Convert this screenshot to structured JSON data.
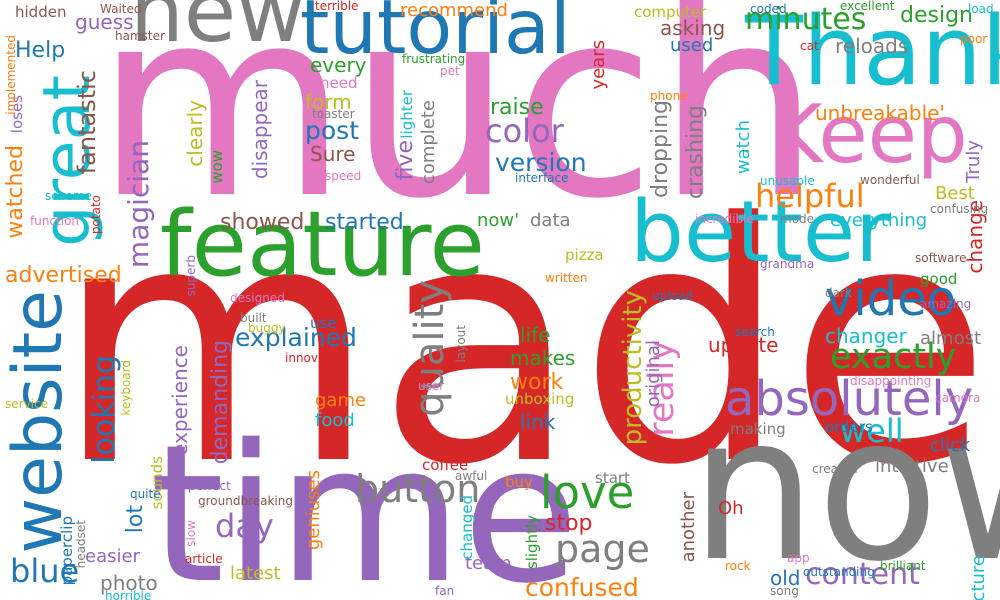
{
  "word_cloud": {
    "words": [
      {
        "text": "made",
        "color": "#d62728"
      },
      {
        "text": "much",
        "color": "#e377c2"
      },
      {
        "text": "now",
        "color": "#7f7f7f"
      },
      {
        "text": "time",
        "color": "#9467bd"
      },
      {
        "text": "feature",
        "color": "#2ca02c"
      },
      {
        "text": "new",
        "color": "#7f7f7f"
      },
      {
        "text": "Thank",
        "color": "#17becf"
      },
      {
        "text": "tutorial",
        "color": "#1f77b4"
      },
      {
        "text": "better",
        "color": "#17becf"
      },
      {
        "text": "Keep",
        "color": "#e377c2"
      },
      {
        "text": "website",
        "color": "#1f77b4"
      },
      {
        "text": "great",
        "color": "#17becf"
      },
      {
        "text": "absolutely",
        "color": "#9467bd"
      },
      {
        "text": "video",
        "color": "#1f77b4"
      },
      {
        "text": "love",
        "color": "#2ca02c"
      },
      {
        "text": "quality",
        "color": "#7f7f7f"
      },
      {
        "text": "button",
        "color": "#7f7f7f"
      },
      {
        "text": "page",
        "color": "#7f7f7f"
      },
      {
        "text": "exactly",
        "color": "#2ca02c"
      },
      {
        "text": "really",
        "color": "#e377c2"
      },
      {
        "text": "minutes",
        "color": "#2ca02c"
      },
      {
        "text": "helpful",
        "color": "#ff7f0e"
      },
      {
        "text": "blue",
        "color": "#1f77b4"
      },
      {
        "text": "well",
        "color": "#17becf"
      },
      {
        "text": "content",
        "color": "#9467bd"
      },
      {
        "text": "color",
        "color": "#9467bd"
      },
      {
        "text": "day",
        "color": "#9467bd"
      },
      {
        "text": "looking",
        "color": "#1f77b4"
      },
      {
        "text": "magician",
        "color": "#9467bd"
      },
      {
        "text": "confused",
        "color": "#ff7f0e"
      },
      {
        "text": "productivity",
        "color": "#bcbd22"
      },
      {
        "text": "explained",
        "color": "#1f77b4"
      },
      {
        "text": "design",
        "color": "#2ca02c"
      },
      {
        "text": "Help",
        "color": "#1f77b4"
      },
      {
        "text": "post",
        "color": "#1f77b4"
      },
      {
        "text": "five",
        "color": "#9467bd"
      },
      {
        "text": "version",
        "color": "#1f77b4"
      },
      {
        "text": "raise",
        "color": "#2ca02c"
      },
      {
        "text": "fantastic",
        "color": "#8c564b"
      },
      {
        "text": "watched",
        "color": "#ff7f0e"
      },
      {
        "text": "demanding",
        "color": "#9467bd"
      },
      {
        "text": "dropping",
        "color": "#7f7f7f"
      },
      {
        "text": "crashing",
        "color": "#7f7f7f"
      },
      {
        "text": "experience",
        "color": "#9467bd"
      },
      {
        "text": "advertised",
        "color": "#ff7f0e"
      },
      {
        "text": "lot",
        "color": "#1f77b4"
      },
      {
        "text": "showed",
        "color": "#8c564b"
      },
      {
        "text": "started",
        "color": "#1f77b4"
      },
      {
        "text": "work",
        "color": "#ff7f0e"
      },
      {
        "text": "stop",
        "color": "#d62728"
      },
      {
        "text": "makes",
        "color": "#2ca02c"
      },
      {
        "text": "life",
        "color": "#2ca02c"
      },
      {
        "text": "link",
        "color": "#1f77b4"
      },
      {
        "text": "update",
        "color": "#d62728"
      },
      {
        "text": "changer",
        "color": "#17becf"
      },
      {
        "text": "unbreakable'",
        "color": "#ff7f0e"
      },
      {
        "text": "everything",
        "color": "#17becf"
      },
      {
        "text": "change",
        "color": "#d62728"
      },
      {
        "text": "asking",
        "color": "#8c564b"
      },
      {
        "text": "reloads",
        "color": "#7f7f7f"
      },
      {
        "text": "disappear",
        "color": "#9467bd"
      },
      {
        "text": "clearly",
        "color": "#bcbd22"
      },
      {
        "text": "guess",
        "color": "#9467bd"
      },
      {
        "text": "every",
        "color": "#2ca02c"
      },
      {
        "text": "form",
        "color": "#bcbd22"
      },
      {
        "text": "Sure",
        "color": "#8c564b"
      },
      {
        "text": "recommend",
        "color": "#ff7f0e"
      },
      {
        "text": "used",
        "color": "#1f77b4"
      },
      {
        "text": "years",
        "color": "#d62728"
      },
      {
        "text": "Best",
        "color": "#bcbd22"
      },
      {
        "text": "watch",
        "color": "#17becf"
      },
      {
        "text": "intuitive",
        "color": "#7f7f7f"
      },
      {
        "text": "click",
        "color": "#1f77b4"
      },
      {
        "text": "almost",
        "color": "#7f7f7f"
      },
      {
        "text": "game",
        "color": "#ff7f0e"
      },
      {
        "text": "food",
        "color": "#17becf"
      },
      {
        "text": "original",
        "color": "#9467bd"
      },
      {
        "text": "another",
        "color": "#8c564b"
      },
      {
        "text": "Oh",
        "color": "#d62728"
      },
      {
        "text": "old",
        "color": "#1f77b4"
      },
      {
        "text": "latest",
        "color": "#bcbd22"
      },
      {
        "text": "easier",
        "color": "#9467bd"
      },
      {
        "text": "photo",
        "color": "#7f7f7f"
      },
      {
        "text": "team",
        "color": "#9467bd"
      },
      {
        "text": "geniuses",
        "color": "#ff7f0e"
      },
      {
        "text": "complete",
        "color": "#7f7f7f"
      },
      {
        "text": "data",
        "color": "#7f7f7f"
      },
      {
        "text": "now'",
        "color": "#2ca02c"
      },
      {
        "text": "pizza",
        "color": "#bcbd22"
      },
      {
        "text": "making",
        "color": "#7f7f7f"
      },
      {
        "text": "coffee",
        "color": "#d62728"
      },
      {
        "text": "sounds",
        "color": "#bcbd22"
      },
      {
        "text": "paperclip",
        "color": "#1f77b4"
      },
      {
        "text": "picture",
        "color": "#17becf"
      },
      {
        "text": "Truly",
        "color": "#9467bd"
      },
      {
        "text": "loses",
        "color": "#9467bd"
      },
      {
        "text": "hidden",
        "color": "#8c564b"
      },
      {
        "text": "lighter",
        "color": "#17becf"
      },
      {
        "text": "use",
        "color": "#1f77b4"
      },
      {
        "text": "need",
        "color": "#e377c2"
      },
      {
        "text": "computer",
        "color": "#bcbd22"
      },
      {
        "text": "buy",
        "color": "#ff7f0e"
      },
      {
        "text": "slightly",
        "color": "#2ca02c"
      },
      {
        "text": "unboxing",
        "color": "#bcbd22"
      },
      {
        "text": "good",
        "color": "#2ca02c"
      },
      {
        "text": "orders",
        "color": "#1f77b4"
      },
      {
        "text": "start",
        "color": "#7f7f7f"
      },
      {
        "text": "changed",
        "color": "#17becf"
      },
      {
        "text": "wow",
        "color": "#2ca02c"
      },
      {
        "text": "terrible",
        "color": "#d62728"
      },
      {
        "text": "Waited",
        "color": "#8c564b"
      },
      {
        "text": "hamster",
        "color": "#8c564b"
      },
      {
        "text": "frustrating",
        "color": "#2ca02c"
      },
      {
        "text": "toaster",
        "color": "#7f7f7f"
      },
      {
        "text": "pet",
        "color": "#e377c2"
      },
      {
        "text": "excellent",
        "color": "#2ca02c"
      },
      {
        "text": "coded",
        "color": "#1f77b4"
      },
      {
        "text": "load",
        "color": "#17becf"
      },
      {
        "text": "cat",
        "color": "#d62728"
      },
      {
        "text": "poor",
        "color": "#ff7f0e"
      },
      {
        "text": "speed",
        "color": "#e377c2"
      },
      {
        "text": "interface",
        "color": "#1f77b4"
      },
      {
        "text": "phone",
        "color": "#ff7f0e"
      },
      {
        "text": "unusable",
        "color": "#17becf"
      },
      {
        "text": "wonderful",
        "color": "#8c564b"
      },
      {
        "text": "confusing",
        "color": "#7f7f7f"
      },
      {
        "text": "incredible",
        "color": "#e377c2"
      },
      {
        "text": "mode",
        "color": "#7f7f7f"
      },
      {
        "text": "software",
        "color": "#8c564b"
      },
      {
        "text": "grandma",
        "color": "#9467bd"
      },
      {
        "text": "amazing",
        "color": "#9467bd"
      },
      {
        "text": "dark",
        "color": "#7f7f7f"
      },
      {
        "text": "upload",
        "color": "#1f77b4"
      },
      {
        "text": "search",
        "color": "#1f77b4"
      },
      {
        "text": "disappointing",
        "color": "#e377c2"
      },
      {
        "text": "camera",
        "color": "#e377c2"
      },
      {
        "text": "created",
        "color": "#7f7f7f"
      },
      {
        "text": "app",
        "color": "#e377c2"
      },
      {
        "text": "rock",
        "color": "#ff7f0e"
      },
      {
        "text": "outstanding",
        "color": "#1f77b4"
      },
      {
        "text": "brilliant",
        "color": "#2ca02c"
      },
      {
        "text": "song",
        "color": "#7f7f7f"
      },
      {
        "text": "fan",
        "color": "#9467bd"
      },
      {
        "text": "awful",
        "color": "#7f7f7f"
      },
      {
        "text": "perfect",
        "color": "#9467bd"
      },
      {
        "text": "quite",
        "color": "#1f77b4"
      },
      {
        "text": "groundbreaking",
        "color": "#8c564b"
      },
      {
        "text": "article",
        "color": "#d62728"
      },
      {
        "text": "slow",
        "color": "#e377c2"
      },
      {
        "text": "headset",
        "color": "#7f7f7f"
      },
      {
        "text": "horrible",
        "color": "#17becf"
      },
      {
        "text": "written",
        "color": "#ff7f0e"
      },
      {
        "text": "designed",
        "color": "#e377c2"
      },
      {
        "text": "built",
        "color": "#7f7f7f"
      },
      {
        "text": "buggy",
        "color": "#bcbd22"
      },
      {
        "text": "innovation",
        "color": "#d62728"
      },
      {
        "text": "layout",
        "color": "#7f7f7f"
      },
      {
        "text": "user",
        "color": "#e377c2"
      },
      {
        "text": "superb",
        "color": "#9467bd"
      },
      {
        "text": "keyboard",
        "color": "#bcbd22"
      },
      {
        "text": "service",
        "color": "#bcbd22"
      },
      {
        "text": "function",
        "color": "#e377c2"
      },
      {
        "text": "potato",
        "color": "#d62728"
      },
      {
        "text": "scheme",
        "color": "#17becf"
      },
      {
        "text": "implemented",
        "color": "#ff7f0e"
      }
    ]
  }
}
